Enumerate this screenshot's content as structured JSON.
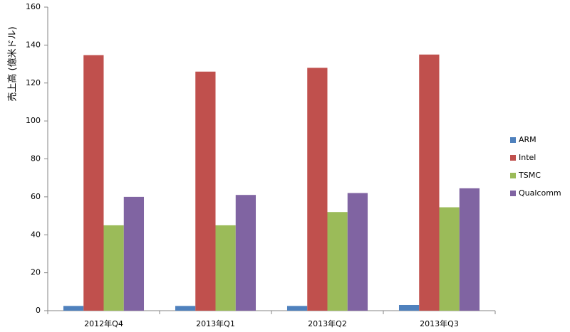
{
  "chart_data": {
    "type": "bar",
    "y_label": "売上高 (億米ドル)",
    "categories": [
      "2012年Q4",
      "2013年Q1",
      "2013年Q2",
      "2013年Q3"
    ],
    "series": [
      {
        "name": "ARM",
        "color": "#4f81bd",
        "values": [
          2.5,
          2.5,
          2.5,
          3
        ]
      },
      {
        "name": "Intel",
        "color": "#c0504d",
        "values": [
          134.7,
          126,
          128,
          135
        ]
      },
      {
        "name": "TSMC",
        "color": "#9bbb59",
        "values": [
          45,
          45,
          52,
          54.5
        ]
      },
      {
        "name": "Qualcomm",
        "color": "#8064a2",
        "values": [
          60,
          61,
          62,
          64.5
        ]
      }
    ],
    "ylim": [
      0,
      160
    ],
    "yticks": [
      0,
      20,
      40,
      60,
      80,
      100,
      120,
      140,
      160
    ],
    "grid": false,
    "legend": "right"
  }
}
